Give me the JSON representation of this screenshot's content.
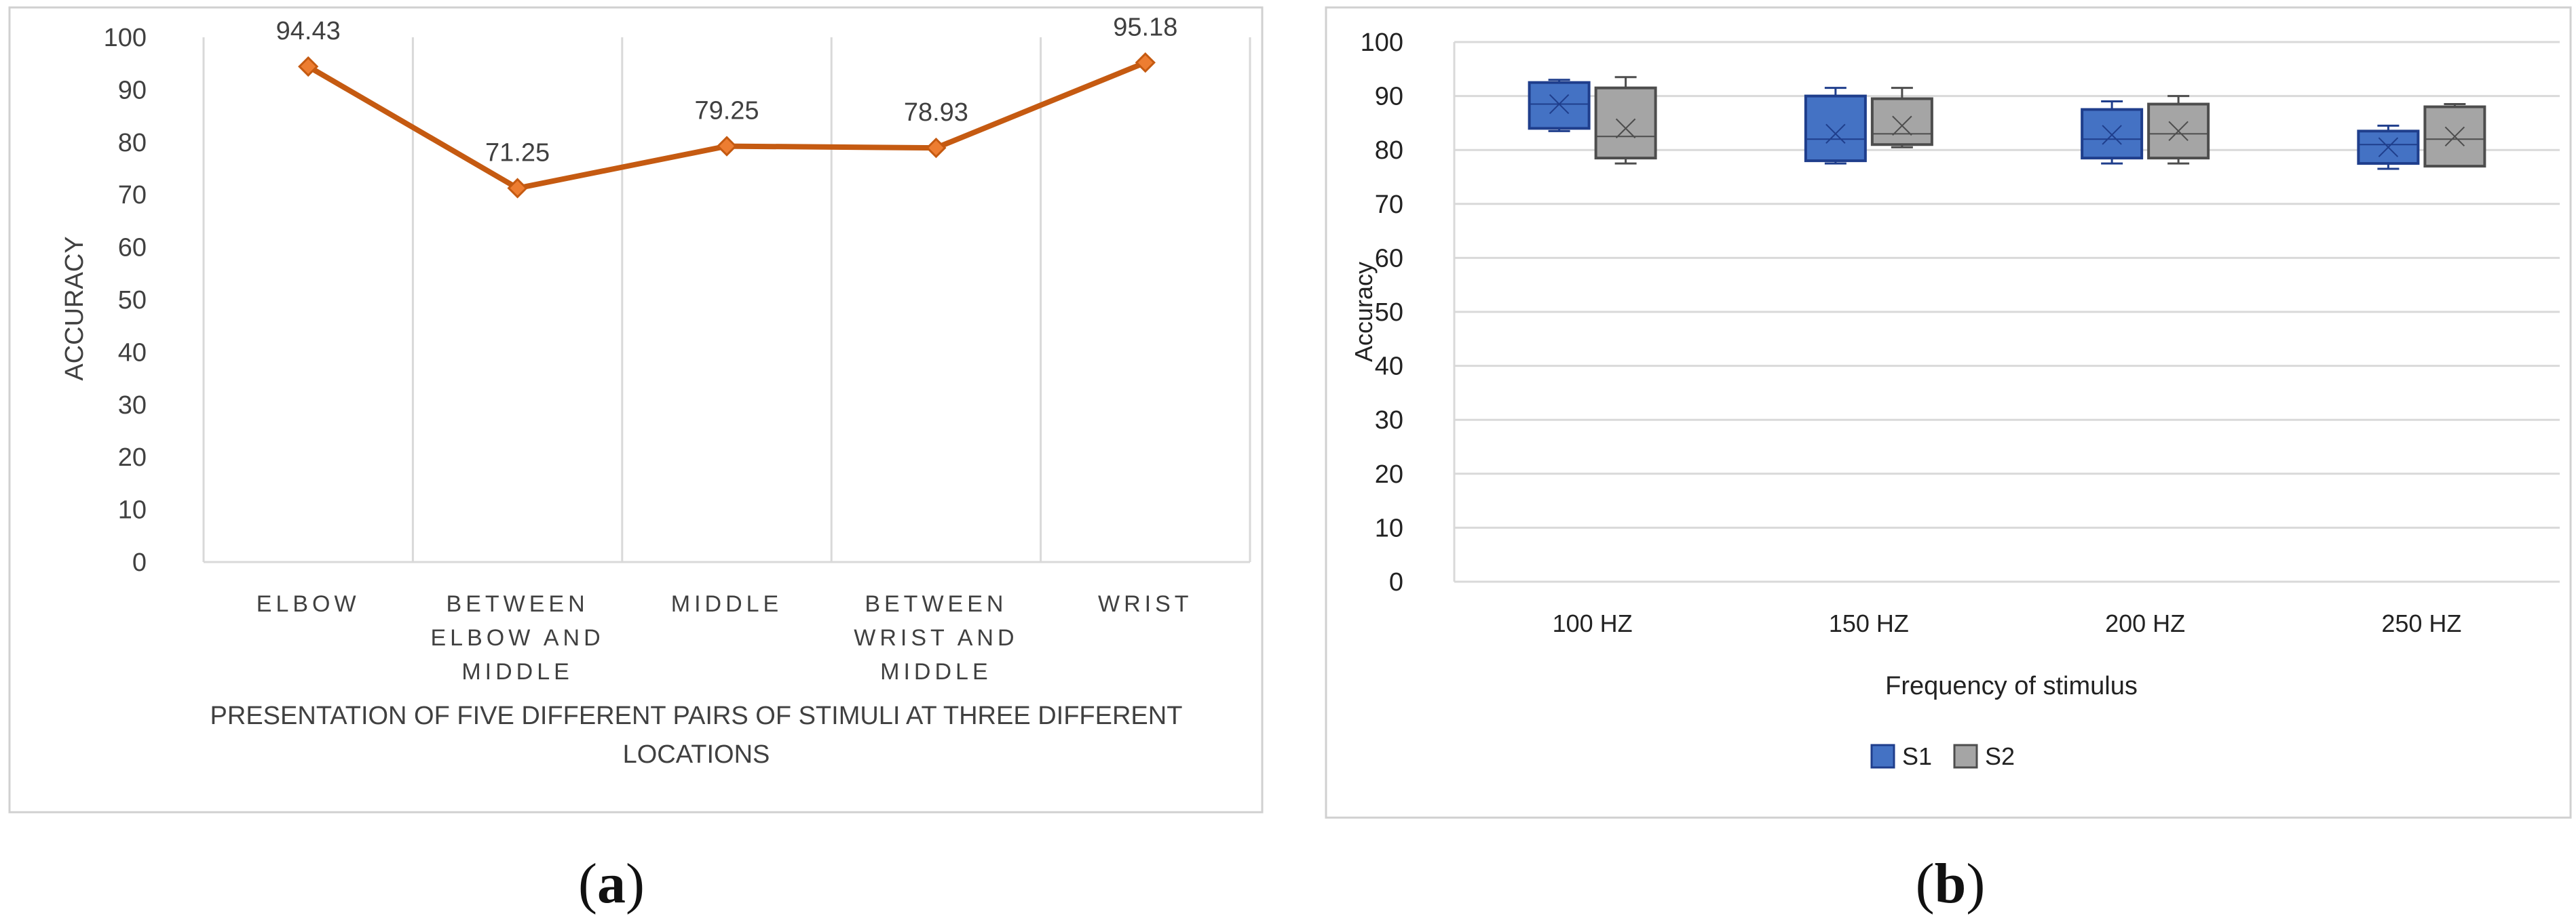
{
  "panels": {
    "a": {
      "label_open": "(",
      "label_letter": "a",
      "label_close": ")"
    },
    "b": {
      "label_open": "(",
      "label_letter": "b",
      "label_close": ")"
    }
  },
  "colors": {
    "line": "#C55A11",
    "marker": "#ED7D31",
    "s1_fill": "#4472C4",
    "s1_stroke": "#1F3E8C",
    "s2_fill": "#A5A5A5",
    "s2_stroke": "#4D4D4D",
    "grid": "#D9D9D9",
    "border": "#D0D0D0"
  },
  "chart_data": [
    {
      "type": "line",
      "title": "",
      "xlabel": "PRESENTATION  OF FIVE DIFFERENT PAIRS OF STIMULI AT THREE DIFFERENT LOCATIONS",
      "xlabel_lines": [
        "PRESENTATION  OF FIVE DIFFERENT PAIRS OF STIMULI AT THREE DIFFERENT",
        "LOCATIONS"
      ],
      "ylabel": "ACCURACY",
      "ylim": [
        0,
        100
      ],
      "yticks": [
        "0",
        "10",
        "20",
        "30",
        "40",
        "50",
        "60",
        "70",
        "80",
        "90",
        "100"
      ],
      "categories": [
        "ELBOW",
        "BETWEEN ELBOW AND MIDDLE",
        "MIDDLE",
        "BETWEEN WRIST AND MIDDLE",
        "WRIST"
      ],
      "category_lines": [
        [
          "ELBOW"
        ],
        [
          "BETWEEN",
          "ELBOW AND",
          "MIDDLE"
        ],
        [
          "MIDDLE"
        ],
        [
          "BETWEEN",
          "WRIST AND",
          "MIDDLE"
        ],
        [
          "WRIST"
        ]
      ],
      "values": [
        94.43,
        71.25,
        79.25,
        78.93,
        95.18
      ],
      "data_labels": [
        "94.43",
        "71.25",
        "79.25",
        "78.93",
        "95.18"
      ],
      "grid": "vertical category separators",
      "legend": "none"
    },
    {
      "type": "box",
      "title": "",
      "xlabel": "Frequency of stimulus",
      "ylabel": "Accuracy",
      "ylim": [
        0,
        100
      ],
      "yticks": [
        "0",
        "10",
        "20",
        "30",
        "40",
        "50",
        "60",
        "70",
        "80",
        "90",
        "100"
      ],
      "categories": [
        "100 HZ",
        "150 HZ",
        "200 HZ",
        "250 HZ"
      ],
      "grid": "horizontal",
      "legend": "bottom-center",
      "series": [
        {
          "name": "S1",
          "boxes": [
            {
              "min": 83.5,
              "q1": 84,
              "median": 88.5,
              "q3": 92.5,
              "max": 93,
              "mean": 88.5
            },
            {
              "min": 77.5,
              "q1": 78,
              "median": 82,
              "q3": 90,
              "max": 91.5,
              "mean": 83
            },
            {
              "min": 77.5,
              "q1": 78.5,
              "median": 82,
              "q3": 87.5,
              "max": 89,
              "mean": 82.8
            },
            {
              "min": 76.5,
              "q1": 77.5,
              "median": 81,
              "q3": 83.5,
              "max": 84.5,
              "mean": 80.5
            }
          ]
        },
        {
          "name": "S2",
          "boxes": [
            {
              "min": 77.5,
              "q1": 78.5,
              "median": 82.5,
              "q3": 91.5,
              "max": 93.5,
              "mean": 84
            },
            {
              "min": 80.5,
              "q1": 81,
              "median": 83,
              "q3": 89.5,
              "max": 91.5,
              "mean": 84.5
            },
            {
              "min": 77.5,
              "q1": 78.5,
              "median": 83,
              "q3": 88.5,
              "max": 90,
              "mean": 83.5
            },
            {
              "min": 77,
              "q1": 77,
              "median": 82,
              "q3": 88,
              "max": 88.5,
              "mean": 82.5
            }
          ]
        }
      ]
    }
  ]
}
